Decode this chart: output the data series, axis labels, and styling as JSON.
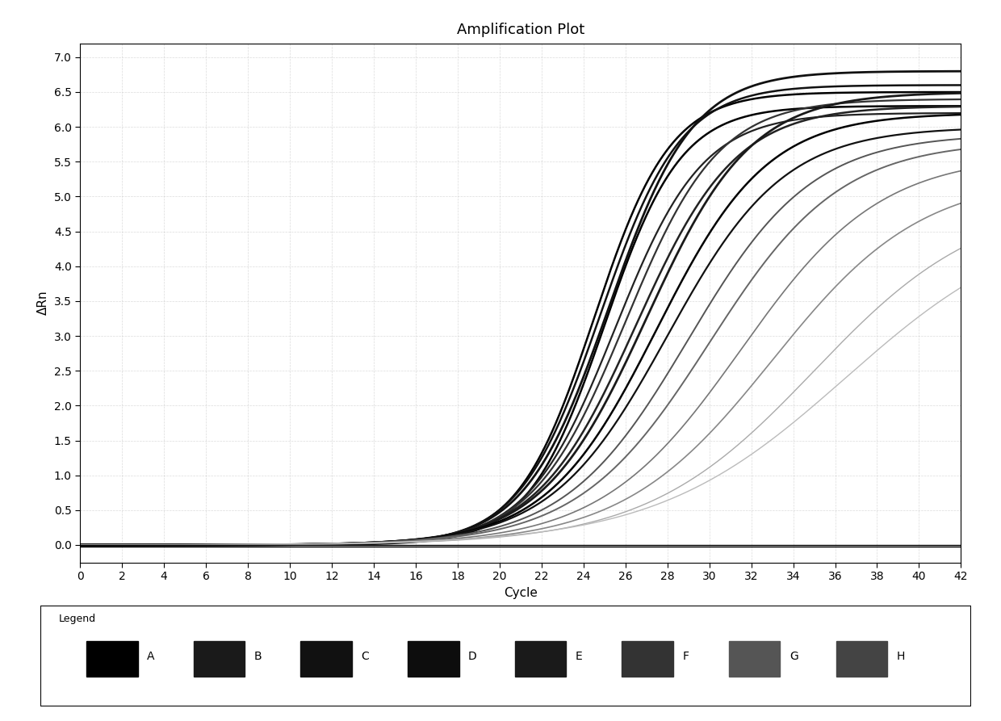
{
  "title": "Amplification Plot",
  "xlabel": "Cycle",
  "ylabel": "ΔRn",
  "xlim": [
    0,
    42
  ],
  "ylim": [
    -0.25,
    7.2
  ],
  "xticks": [
    0,
    2,
    4,
    6,
    8,
    10,
    12,
    14,
    16,
    18,
    20,
    22,
    24,
    26,
    28,
    30,
    32,
    34,
    36,
    38,
    40,
    42
  ],
  "yticks": [
    0.0,
    0.5,
    1.0,
    1.5,
    2.0,
    2.5,
    3.0,
    3.5,
    4.0,
    4.5,
    5.0,
    5.5,
    6.0,
    6.5,
    7.0
  ],
  "background_color": "#ffffff",
  "plot_bg_color": "#ffffff",
  "grid_color": "#cccccc",
  "legend_labels": [
    "A",
    "B",
    "C",
    "D",
    "E",
    "F",
    "G",
    "H"
  ],
  "curves": [
    {
      "midpoint": 24.5,
      "steepness": 0.55,
      "max_val": 6.5,
      "color": "#000000",
      "lw": 1.8,
      "group": "dark"
    },
    {
      "midpoint": 25.0,
      "steepness": 0.55,
      "max_val": 6.3,
      "color": "#000000",
      "lw": 1.8,
      "group": "dark"
    },
    {
      "midpoint": 24.8,
      "steepness": 0.52,
      "max_val": 6.6,
      "color": "#111111",
      "lw": 1.8,
      "group": "dark"
    },
    {
      "midpoint": 25.2,
      "steepness": 0.5,
      "max_val": 6.8,
      "color": "#111111",
      "lw": 2.0,
      "group": "dark"
    },
    {
      "midpoint": 25.5,
      "steepness": 0.48,
      "max_val": 6.2,
      "color": "#222222",
      "lw": 1.6,
      "group": "dark"
    },
    {
      "midpoint": 26.0,
      "steepness": 0.45,
      "max_val": 6.4,
      "color": "#333333",
      "lw": 1.6,
      "group": "dark"
    },
    {
      "midpoint": 26.5,
      "steepness": 0.42,
      "max_val": 6.3,
      "color": "#222222",
      "lw": 1.8,
      "group": "dark"
    },
    {
      "midpoint": 27.0,
      "steepness": 0.4,
      "max_val": 6.5,
      "color": "#1a1a1a",
      "lw": 2.0,
      "group": "dark"
    },
    {
      "midpoint": 27.5,
      "steepness": 0.38,
      "max_val": 6.2,
      "color": "#000000",
      "lw": 1.8,
      "group": "dark"
    },
    {
      "midpoint": 28.0,
      "steepness": 0.36,
      "max_val": 6.0,
      "color": "#111111",
      "lw": 1.6,
      "group": "dark"
    },
    {
      "midpoint": 29.0,
      "steepness": 0.34,
      "max_val": 5.9,
      "color": "#555555",
      "lw": 1.4,
      "group": "medium"
    },
    {
      "midpoint": 30.0,
      "steepness": 0.32,
      "max_val": 5.8,
      "color": "#666666",
      "lw": 1.4,
      "group": "medium"
    },
    {
      "midpoint": 31.5,
      "steepness": 0.3,
      "max_val": 5.6,
      "color": "#777777",
      "lw": 1.2,
      "group": "light"
    },
    {
      "midpoint": 33.0,
      "steepness": 0.28,
      "max_val": 5.3,
      "color": "#888888",
      "lw": 1.2,
      "group": "light"
    },
    {
      "midpoint": 35.0,
      "steepness": 0.25,
      "max_val": 5.0,
      "color": "#aaaaaa",
      "lw": 1.0,
      "group": "lighter"
    },
    {
      "midpoint": 36.5,
      "steepness": 0.22,
      "max_val": 4.8,
      "color": "#bbbbbb",
      "lw": 1.0,
      "group": "lighter"
    },
    {
      "midpoint": 0.0,
      "steepness": 0.0,
      "max_val": 0.0,
      "color": "#000000",
      "lw": 1.2,
      "group": "flat"
    }
  ],
  "flat_line_color": "#000000",
  "title_fontsize": 13,
  "label_fontsize": 11,
  "tick_fontsize": 10
}
